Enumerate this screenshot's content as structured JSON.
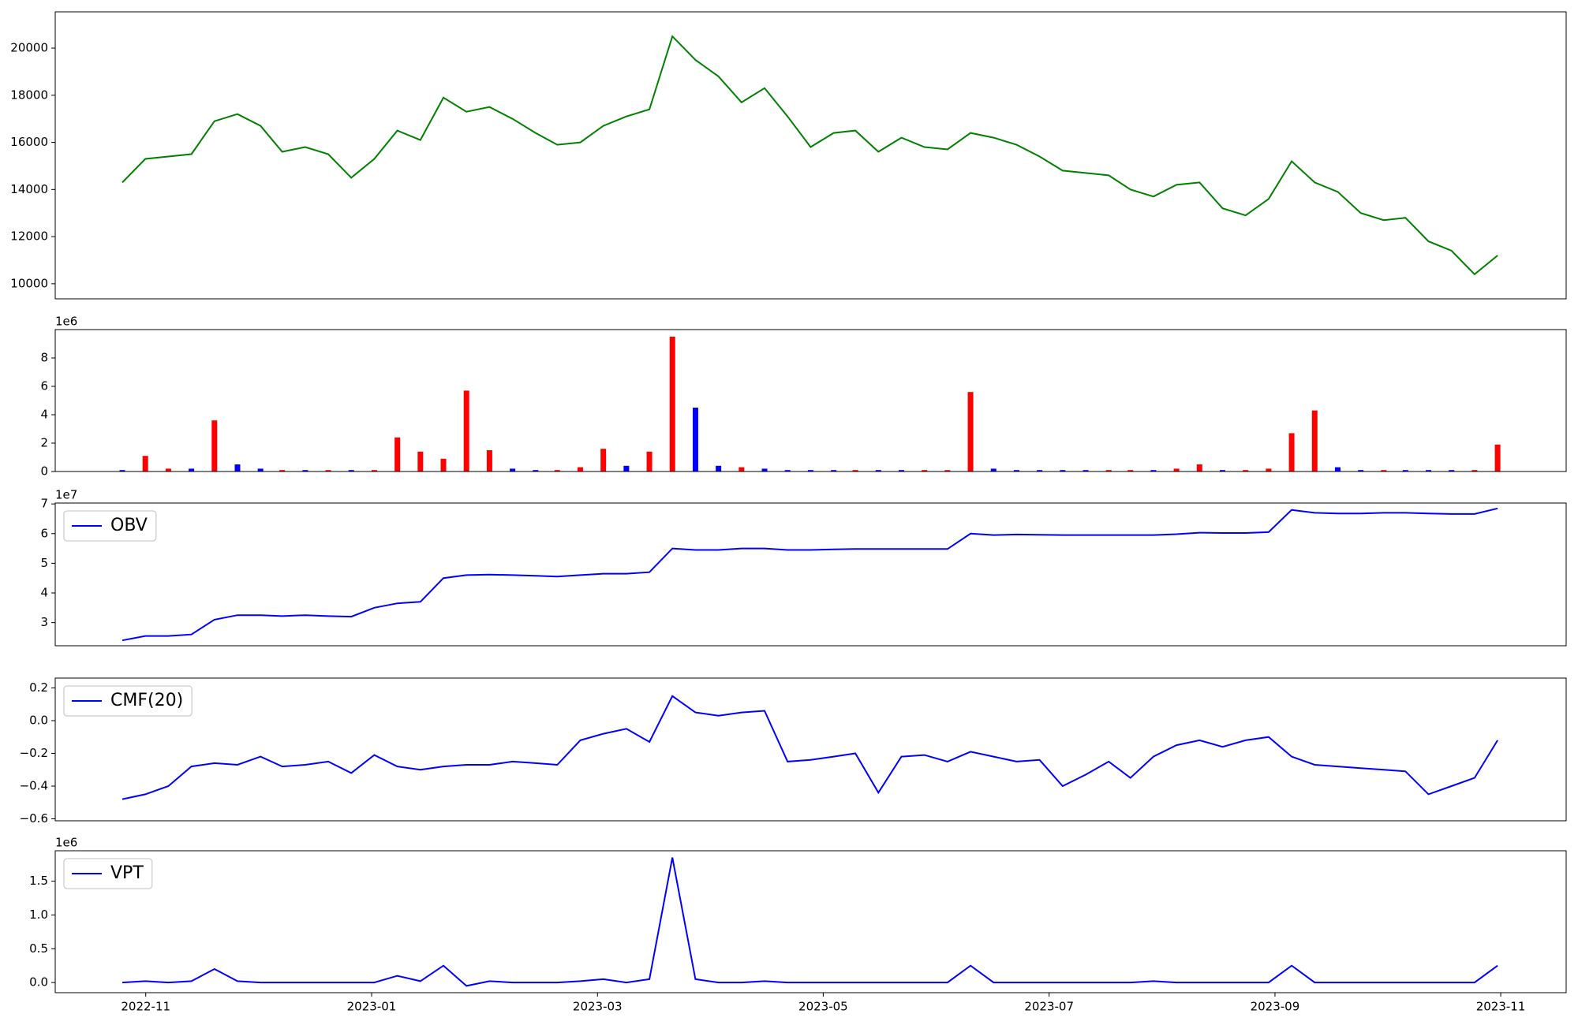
{
  "chart_data": [
    {
      "type": "line",
      "color": "#008000",
      "xlim": [
        2022.7665,
        2023.8816
      ],
      "x": [
        2022.816,
        2022.833,
        2022.85,
        2022.867,
        2022.884,
        2022.901,
        2022.918,
        2022.934,
        2022.951,
        2022.968,
        2022.985,
        2023.002,
        2023.019,
        2023.036,
        2023.053,
        2023.07,
        2023.087,
        2023.104,
        2023.121,
        2023.137,
        2023.154,
        2023.171,
        2023.188,
        2023.205,
        2023.222,
        2023.239,
        2023.256,
        2023.273,
        2023.29,
        2023.307,
        2023.324,
        2023.341,
        2023.357,
        2023.374,
        2023.391,
        2023.408,
        2023.425,
        2023.442,
        2023.459,
        2023.476,
        2023.493,
        2023.51,
        2023.527,
        2023.544,
        2023.56,
        2023.577,
        2023.594,
        2023.611,
        2023.628,
        2023.645,
        2023.662,
        2023.679,
        2023.696,
        2023.713,
        2023.73,
        2023.747,
        2023.763,
        2023.78,
        2023.797,
        2023.814,
        2023.831
      ],
      "values": [
        14300,
        15300,
        15400,
        15500,
        16900,
        17200,
        16700,
        15600,
        15800,
        15500,
        14500,
        15300,
        16500,
        16100,
        17900,
        17300,
        17500,
        17000,
        16400,
        15900,
        16000,
        16700,
        17100,
        17400,
        20500,
        19500,
        18800,
        17700,
        18300,
        17100,
        15800,
        16400,
        16500,
        15600,
        16200,
        15800,
        15700,
        16400,
        16200,
        15900,
        15400,
        14800,
        14700,
        14600,
        14000,
        13700,
        14200,
        14300,
        13200,
        12900,
        13600,
        15200,
        14300,
        13900,
        13000,
        12700,
        12800,
        11800,
        11400,
        10400,
        11200
      ],
      "ylim": [
        9360,
        21540
      ],
      "yticks": [
        10000,
        12000,
        14000,
        16000,
        18000,
        20000
      ]
    },
    {
      "type": "bar",
      "offset": "1e6",
      "values": [
        0.1,
        1.1,
        0.2,
        0.2,
        3.6,
        0.5,
        0.2,
        0.1,
        0.1,
        0.1,
        0.1,
        0.1,
        2.4,
        1.4,
        0.9,
        5.7,
        1.5,
        0.2,
        0.1,
        0.1,
        0.3,
        1.6,
        0.4,
        1.4,
        9.5,
        4.5,
        0.4,
        0.3,
        0.2,
        0.1,
        0.1,
        0.1,
        0.1,
        0.1,
        0.1,
        0.1,
        0.1,
        5.6,
        0.2,
        0.1,
        0.1,
        0.1,
        0.1,
        0.1,
        0.1,
        0.1,
        0.2,
        0.5,
        0.1,
        0.1,
        0.2,
        2.7,
        4.3,
        0.3,
        0.1,
        0.1,
        0.1,
        0.1,
        0.1,
        0.1,
        1.9
      ],
      "colors": [
        "#0000ff",
        "#ff0000",
        "#ff0000",
        "#0000ff",
        "#ff0000",
        "#0000ff",
        "#0000ff",
        "#ff0000",
        "#0000ff",
        "#ff0000",
        "#0000ff",
        "#ff0000",
        "#ff0000",
        "#ff0000",
        "#ff0000",
        "#ff0000",
        "#ff0000",
        "#0000ff",
        "#0000ff",
        "#ff0000",
        "#ff0000",
        "#ff0000",
        "#0000ff",
        "#ff0000",
        "#ff0000",
        "#0000ff",
        "#0000ff",
        "#ff0000",
        "#0000ff",
        "#0000ff",
        "#0000ff",
        "#0000ff",
        "#ff0000",
        "#0000ff",
        "#0000ff",
        "#ff0000",
        "#ff0000",
        "#ff0000",
        "#0000ff",
        "#0000ff",
        "#0000ff",
        "#0000ff",
        "#0000ff",
        "#ff0000",
        "#ff0000",
        "#0000ff",
        "#ff0000",
        "#ff0000",
        "#0000ff",
        "#ff0000",
        "#ff0000",
        "#ff0000",
        "#ff0000",
        "#0000ff",
        "#0000ff",
        "#ff0000",
        "#0000ff",
        "#0000ff",
        "#0000ff",
        "#ff0000",
        "#ff0000"
      ],
      "ylim": [
        0,
        10
      ],
      "yticks": [
        0,
        2,
        4,
        6,
        8
      ]
    },
    {
      "type": "line",
      "offset": "1e7",
      "legend": "upper left",
      "series": [
        {
          "name": "OBV",
          "color": "#0000ff",
          "values": [
            2.4,
            2.55,
            2.55,
            2.6,
            3.1,
            3.25,
            3.25,
            3.22,
            3.25,
            3.22,
            3.2,
            3.5,
            3.65,
            3.7,
            4.5,
            4.6,
            4.62,
            4.6,
            4.58,
            4.55,
            4.6,
            4.65,
            4.65,
            4.7,
            5.5,
            5.45,
            5.45,
            5.5,
            5.5,
            5.45,
            5.45,
            5.47,
            5.48,
            5.48,
            5.48,
            5.48,
            5.48,
            6.0,
            5.95,
            5.97,
            5.96,
            5.95,
            5.95,
            5.95,
            5.95,
            5.95,
            5.98,
            6.03,
            6.02,
            6.02,
            6.05,
            6.8,
            6.7,
            6.68,
            6.68,
            6.7,
            6.7,
            6.68,
            6.66,
            6.66,
            6.85
          ]
        }
      ],
      "ylim": [
        2.22,
        7.03
      ],
      "yticks": [
        3,
        4,
        5,
        6,
        7
      ]
    },
    {
      "type": "line",
      "legend": "upper left",
      "series": [
        {
          "name": "CMF(20)",
          "color": "#0000ff",
          "values": [
            -0.48,
            -0.45,
            -0.4,
            -0.28,
            -0.26,
            -0.27,
            -0.22,
            -0.28,
            -0.27,
            -0.25,
            -0.32,
            -0.21,
            -0.28,
            -0.3,
            -0.28,
            -0.27,
            -0.27,
            -0.25,
            -0.26,
            -0.27,
            -0.12,
            -0.08,
            -0.05,
            -0.13,
            0.15,
            0.05,
            0.03,
            0.05,
            0.06,
            -0.25,
            -0.24,
            -0.22,
            -0.2,
            -0.44,
            -0.22,
            -0.21,
            -0.25,
            -0.19,
            -0.22,
            -0.25,
            -0.24,
            -0.4,
            -0.33,
            -0.25,
            -0.35,
            -0.22,
            -0.15,
            -0.12,
            -0.16,
            -0.12,
            -0.1,
            -0.22,
            -0.27,
            -0.28,
            -0.29,
            -0.3,
            -0.31,
            -0.45,
            -0.4,
            -0.35,
            -0.12
          ]
        }
      ],
      "ylim": [
        -0.612,
        0.26
      ],
      "yticks": [
        {
          "value": -0.6,
          "label": "−0.6"
        },
        {
          "value": -0.4,
          "label": "−0.4"
        },
        {
          "value": -0.2,
          "label": "−0.2"
        },
        {
          "value": 0,
          "label": "0.0"
        },
        0.2
      ]
    },
    {
      "type": "line",
      "offset": "1e6",
      "legend": "upper left",
      "series": [
        {
          "name": "VPT",
          "color": "#0000ff",
          "values": [
            0.0,
            0.02,
            0.0,
            0.02,
            0.2,
            0.02,
            0.0,
            0.0,
            0.0,
            0.0,
            0.0,
            0.0,
            0.1,
            0.02,
            0.25,
            -0.05,
            0.02,
            0.0,
            0.0,
            0.0,
            0.02,
            0.05,
            0.0,
            0.05,
            1.85,
            0.05,
            0.0,
            0.0,
            0.02,
            0.0,
            0.0,
            0.0,
            0.0,
            0.0,
            0.0,
            0.0,
            0.0,
            0.25,
            0.0,
            0.0,
            0.0,
            0.0,
            0.0,
            0.0,
            0.0,
            0.02,
            0.0,
            0.0,
            0.0,
            0.0,
            0.0,
            0.25,
            0.0,
            0.0,
            0.0,
            0.0,
            0.0,
            0.0,
            0.0,
            0.0,
            0.25
          ]
        }
      ],
      "ylim": [
        -0.15,
        1.95
      ],
      "yticks": [
        {
          "value": 0,
          "label": "0.0"
        },
        0.5,
        {
          "value": 1,
          "label": "1.0"
        },
        1.5
      ],
      "xticks": [
        {
          "value": 2022.8333,
          "label": "2022-11"
        },
        {
          "value": 2023.0,
          "label": "2023-01"
        },
        {
          "value": 2023.1667,
          "label": "2023-03"
        },
        {
          "value": 2023.3333,
          "label": "2023-05"
        },
        {
          "value": 2023.5,
          "label": "2023-07"
        },
        {
          "value": 2023.6667,
          "label": "2023-09"
        },
        {
          "value": 2023.8333,
          "label": "2023-11"
        }
      ]
    }
  ]
}
